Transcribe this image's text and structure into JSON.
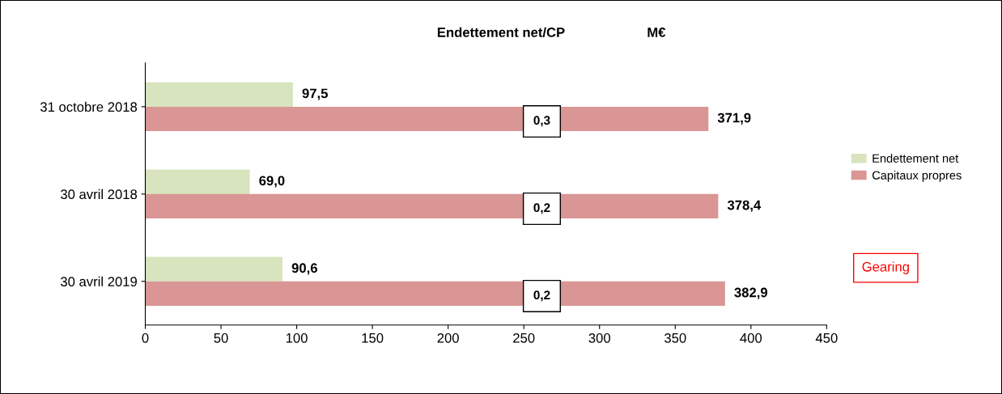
{
  "chart_data": {
    "type": "bar",
    "orientation": "horizontal",
    "title": "Endettement net/CP",
    "categories": [
      "31 octobre 2018",
      "30 avril 2018",
      "30 avril 2019"
    ],
    "series": [
      {
        "name": "Endettement net",
        "color": "#d7e4bd",
        "values": [
          97.5,
          69.0,
          90.6
        ],
        "value_labels": [
          "97,5",
          "69,0",
          "90,6"
        ]
      },
      {
        "name": "Capitaux propres",
        "color": "#d99694",
        "values": [
          371.9,
          378.4,
          382.9
        ],
        "value_labels": [
          "371,9",
          "378,4",
          "382,9"
        ]
      }
    ],
    "xlim": [
      0,
      450
    ],
    "xticks": [
      0,
      50,
      100,
      150,
      200,
      250,
      300,
      350,
      400,
      450
    ],
    "annotations": [
      "M€",
      "Gearing",
      "0,3",
      "0,2",
      "0,2"
    ],
    "grid": false,
    "legend": "right"
  }
}
